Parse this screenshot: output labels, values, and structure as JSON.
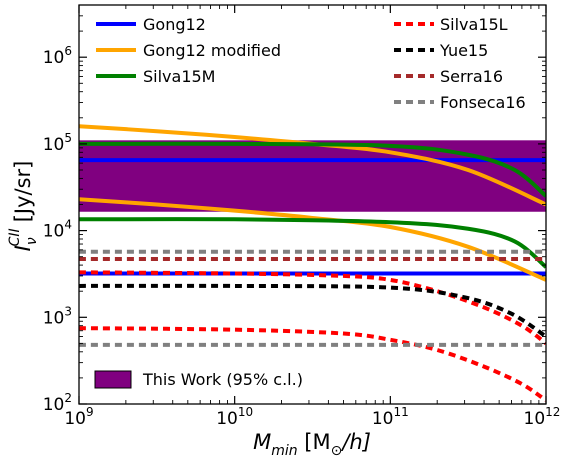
{
  "chart_data": {
    "type": "line",
    "x_scale": "log",
    "y_scale": "log",
    "xlim": [
      1000000000.0,
      1000000000000.0
    ],
    "ylim": [
      100,
      4000000
    ],
    "grid": false,
    "xlabel": {
      "main": "M",
      "sub": "min",
      "bracket_open": " [M",
      "sun": "⊙",
      "tail": "/h]"
    },
    "ylabel": {
      "main": "I",
      "sub": "ν",
      "sup": "CII",
      "units": "[Jy/sr]"
    },
    "x_ticks": [
      {
        "value": 1000000000.0,
        "base": "10",
        "exp": "9"
      },
      {
        "value": 10000000000.0,
        "base": "10",
        "exp": "10"
      },
      {
        "value": 100000000000.0,
        "base": "10",
        "exp": "11"
      },
      {
        "value": 1000000000000.0,
        "base": "10",
        "exp": "12"
      }
    ],
    "y_ticks": [
      {
        "value": 100,
        "base": "10",
        "exp": "2"
      },
      {
        "value": 1000,
        "base": "10",
        "exp": "3"
      },
      {
        "value": 10000,
        "base": "10",
        "exp": "4"
      },
      {
        "value": 100000,
        "base": "10",
        "exp": "5"
      },
      {
        "value": 1000000,
        "base": "10",
        "exp": "6"
      }
    ],
    "band": {
      "name": "This Work (95% c.l.)",
      "y_low": 16500,
      "y_high": 110000,
      "color": "#800080"
    },
    "series": [
      {
        "name": "Gong12",
        "color": "#0000ff",
        "dash": "solid",
        "curves": [
          {
            "x": [
              1000000000.0,
              1000000000000.0
            ],
            "y": [
              65000,
              65000
            ]
          },
          {
            "x": [
              1000000000.0,
              1000000000000.0
            ],
            "y": [
              3200,
              3200
            ]
          }
        ]
      },
      {
        "name": "Gong12 modified",
        "color": "#ffa500",
        "dash": "solid",
        "curves": [
          {
            "x": [
              1000000000.0,
              3160000000.0,
              10000000000.0,
              31600000000.0,
              100000000000.0,
              316000000000.0,
              1000000000000.0
            ],
            "y": [
              160000,
              140000,
              120000,
              100000,
              80000,
              50000,
              20000
            ]
          },
          {
            "x": [
              1000000000.0,
              3160000000.0,
              10000000000.0,
              31600000000.0,
              100000000000.0,
              316000000000.0,
              1000000000000.0
            ],
            "y": [
              23000,
              20000,
              17000,
              14000,
              11000,
              6500,
              2700
            ]
          }
        ]
      },
      {
        "name": "Silva15M",
        "color": "#008000",
        "dash": "solid",
        "curves": [
          {
            "x": [
              1000000000.0,
              10000000000.0,
              100000000000.0,
              316000000000.0,
              630000000000.0,
              1000000000000.0
            ],
            "y": [
              100000,
              100000,
              95000,
              75000,
              50000,
              25000
            ]
          },
          {
            "x": [
              1000000000.0,
              10000000000.0,
              100000000000.0,
              316000000000.0,
              630000000000.0,
              1000000000000.0
            ],
            "y": [
              13500,
              13500,
              12500,
              10500,
              7500,
              3800
            ]
          }
        ]
      },
      {
        "name": "Silva15L",
        "color": "#ff0000",
        "dash": "dashed",
        "curves": [
          {
            "x": [
              1000000000.0,
              10000000000.0,
              50000000000.0,
              100000000000.0,
              200000000000.0,
              400000000000.0,
              700000000000.0,
              1000000000000.0
            ],
            "y": [
              3300,
              3200,
              3000,
              2700,
              2000,
              1300,
              800,
              500
            ]
          },
          {
            "x": [
              1000000000.0,
              10000000000.0,
              50000000000.0,
              100000000000.0,
              200000000000.0,
              400000000000.0,
              700000000000.0,
              1000000000000.0
            ],
            "y": [
              750,
              720,
              650,
              550,
              420,
              270,
              170,
              110
            ]
          }
        ]
      },
      {
        "name": "Yue15",
        "color": "#000000",
        "dash": "dashed",
        "curves": [
          {
            "x": [
              1000000000.0,
              10000000000.0,
              100000000000.0,
              300000000000.0,
              600000000000.0,
              1000000000000.0
            ],
            "y": [
              2300,
              2300,
              2200,
              1700,
              1100,
              600
            ]
          }
        ]
      },
      {
        "name": "Serra16",
        "color": "#a52a2a",
        "dash": "dashed",
        "curves": [
          {
            "x": [
              1000000000.0,
              1000000000000.0
            ],
            "y": [
              4700,
              4700
            ]
          }
        ]
      },
      {
        "name": "Fonseca16",
        "color": "#808080",
        "dash": "dashed",
        "curves": [
          {
            "x": [
              1000000000.0,
              1000000000000.0
            ],
            "y": [
              5700,
              5700
            ]
          },
          {
            "x": [
              1000000000.0,
              1000000000000.0
            ],
            "y": [
              480,
              480
            ]
          }
        ]
      }
    ]
  }
}
